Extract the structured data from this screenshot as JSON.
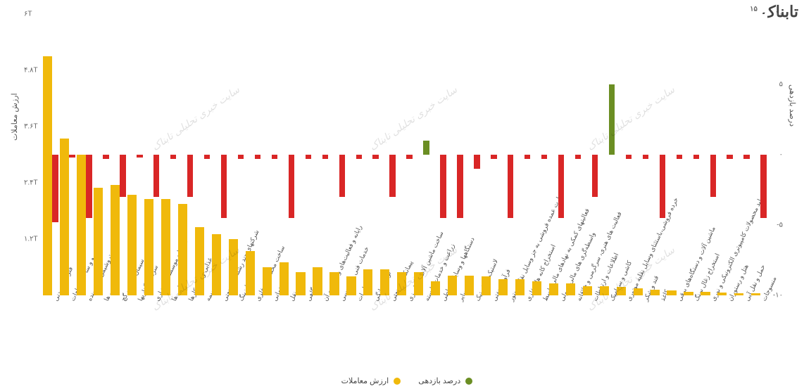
{
  "site": {
    "logo_text": "تابناک",
    "logo_sup": "۱۵"
  },
  "watermark_text": "سایت خبری تحلیلی تابناک",
  "chart": {
    "type": "bar",
    "plot_bg": "#ffffff",
    "volume_color": "#f0b90b",
    "return_neg_color": "#d92626",
    "return_pos_color": "#6b8e23",
    "label_color": "#555555",
    "axis_left": {
      "title": "ارزش معاملات",
      "min": 0,
      "max": 6.0,
      "ticks": [
        "۶T",
        "۴.۸T",
        "۳.۶T",
        "۲.۴T",
        "۱.۲T"
      ],
      "tick_vals": [
        6.0,
        4.8,
        3.6,
        2.4,
        1.2
      ]
    },
    "axis_right": {
      "title": "درصد بازدهی",
      "min": -10,
      "max": 10,
      "ticks": [
        "۱۰",
        "۵",
        "۰",
        "-۵",
        "-۱۰"
      ],
      "tick_vals": [
        10,
        5,
        0,
        -5,
        -10
      ]
    },
    "legend": {
      "volume": "ارزش معاملات",
      "return": "درصد بازدهی"
    },
    "categories": [
      {
        "label": "فلزی و معدنی",
        "volume": 5.1,
        "return": -4.8
      },
      {
        "label": "خودرو و ساخت قطعات",
        "volume": 3.35,
        "return": -0.2
      },
      {
        "label": "پتروشیمی + شوینده",
        "volume": 3.0,
        "return": -4.5
      },
      {
        "label": "دارویی ها",
        "volume": 2.3,
        "return": -0.3
      },
      {
        "label": "سیمان، آهک و گچ",
        "volume": 2.35,
        "return": -3.0
      },
      {
        "label": "سرمایه گذاریها",
        "volume": 2.15,
        "return": -0.2
      },
      {
        "label": "بانکها و موسسات اعتباری",
        "volume": 2.05,
        "return": -3.0
      },
      {
        "label": "شیمیایی ها",
        "volume": 2.05,
        "return": -0.3
      },
      {
        "label": "غذایی و روغنکارها",
        "volume": 1.95,
        "return": -3.0
      },
      {
        "label": "بیمه",
        "volume": 1.45,
        "return": -0.3
      },
      {
        "label": "شرکتهای چند رشته ای صنعتی",
        "volume": 1.3,
        "return": -4.5
      },
      {
        "label": "لیزینگ",
        "volume": 1.2,
        "return": -0.3
      },
      {
        "label": "ساخت محصولات فلزی",
        "volume": 0.95,
        "return": -0.3
      },
      {
        "label": "ساختمانی",
        "volume": 0.6,
        "return": -0.3
      },
      {
        "label": "حمل و نقل",
        "volume": 0.7,
        "return": -4.5
      },
      {
        "label": "نیروگاهی",
        "volume": 0.5,
        "return": -0.3
      },
      {
        "label": "رایانه و فعالیت‌های وابسته به آن",
        "volume": 0.6,
        "return": -0.3
      },
      {
        "label": "خدمات فنی و مهندسی",
        "volume": 0.5,
        "return": -3.0
      },
      {
        "label": "مخابرات",
        "volume": 0.4,
        "return": -0.3
      },
      {
        "label": "لوازم خانگی",
        "volume": 0.55,
        "return": -0.3
      },
      {
        "label": "پیمانکاری صنعتی",
        "volume": 0.55,
        "return": -3.0
      },
      {
        "label": "ساخت ماشین آلات کشاورزی",
        "volume": 0.5,
        "return": -0.3
      },
      {
        "label": "زراعت و خدمات وابسته",
        "volume": 0.5,
        "return": 1.0
      },
      {
        "label": "دستگاهها و وسایل ارتباطی",
        "volume": 0.3,
        "return": -4.5
      },
      {
        "label": "سایر",
        "volume": 0.42,
        "return": -4.5
      },
      {
        "label": "لاستیک و پلاستیک",
        "volume": 0.42,
        "return": -1.0
      },
      {
        "label": "فرآورده نفتی",
        "volume": 0.4,
        "return": -0.3
      },
      {
        "label": "تجارت عمده فروشی به جز وسایل نقلیه موتور",
        "volume": 0.35,
        "return": -4.5
      },
      {
        "label": "استخراج کانه های فلزی",
        "volume": 0.35,
        "return": -0.3
      },
      {
        "label": "فعالیتهای کمکی به نهادهای مالی واسط",
        "volume": 0.3,
        "return": -0.3
      },
      {
        "label": "واسطه‌گری های مالی و پولی",
        "volume": 0.25,
        "return": -4.5
      },
      {
        "label": "فعالیت های هنری، سرگرمی و خلاقانه",
        "volume": 0.25,
        "return": -0.3
      },
      {
        "label": "اطلاعات و ارتباطات",
        "volume": 0.2,
        "return": -3.0
      },
      {
        "label": "کاشی و سرامیک",
        "volume": 0.2,
        "return": 5.0
      },
      {
        "label": "خرده فروشی،باستثنای وسایل نقلیه موتوری",
        "volume": 0.18,
        "return": -0.3
      },
      {
        "label": "قند و شکر",
        "volume": 0.15,
        "return": -0.3
      },
      {
        "label": "کاغذ",
        "volume": 0.12,
        "return": -4.5
      },
      {
        "label": "ماشین آلات و دستگاه‌های برقی",
        "volume": 0.1,
        "return": -0.3
      },
      {
        "label": "استخراج زغال سنگ",
        "volume": 0.08,
        "return": -0.3
      },
      {
        "label": "تولید محصولات کامپیوتری الکترونیکی و نوری",
        "volume": 0.07,
        "return": -3.0
      },
      {
        "label": "هتل و رستوران",
        "volume": 0.06,
        "return": -0.3
      },
      {
        "label": "حمل و نقل آبی",
        "volume": 0.05,
        "return": -0.3
      },
      {
        "label": "منسوجات",
        "volume": 0.04,
        "return": -4.5
      }
    ],
    "watermark_positions": [
      {
        "left_pct": 14,
        "top_pct": 35
      },
      {
        "left_pct": 44,
        "top_pct": 35
      },
      {
        "left_pct": 74,
        "top_pct": 35
      },
      {
        "left_pct": 14,
        "top_pct": 92
      },
      {
        "left_pct": 44,
        "top_pct": 92
      },
      {
        "left_pct": 74,
        "top_pct": 92
      }
    ]
  }
}
